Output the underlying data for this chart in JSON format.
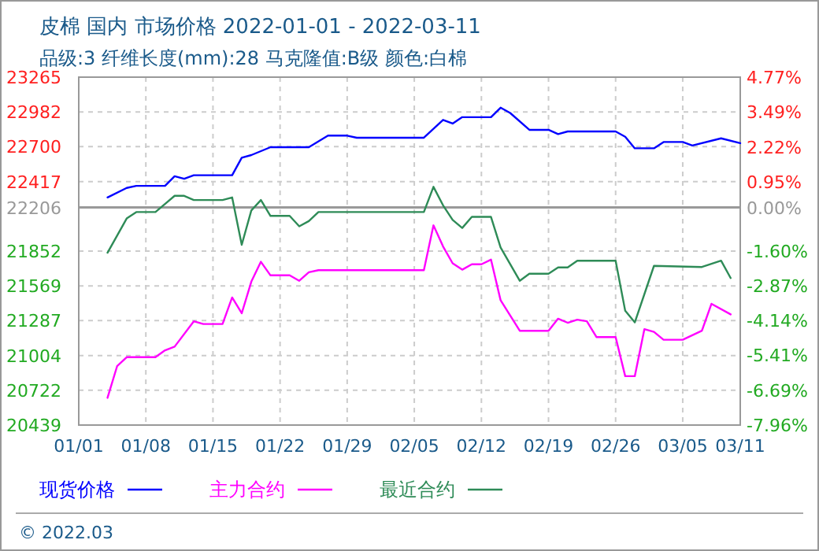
{
  "chart_data": {
    "type": "line",
    "title": "皮棉 国内 市场价格 2022-01-01 - 2022-03-11",
    "subtitle": "品级:3 纤维长度(mm):28 马克隆值:B级 颜色:白棉",
    "annotations": [
      "© 2022.03"
    ],
    "xlim": [
      "2022-01-01",
      "2022-03-11"
    ],
    "xticks": [
      {
        "value": "2022-01-01",
        "label": "01/01"
      },
      {
        "value": "2022-01-08",
        "label": "01/08"
      },
      {
        "value": "2022-01-15",
        "label": "01/15"
      },
      {
        "value": "2022-01-22",
        "label": "01/22"
      },
      {
        "value": "2022-01-29",
        "label": "01/29"
      },
      {
        "value": "2022-02-05",
        "label": "02/05"
      },
      {
        "value": "2022-02-12",
        "label": "02/12"
      },
      {
        "value": "2022-02-19",
        "label": "02/19"
      },
      {
        "value": "2022-02-26",
        "label": "02/26"
      },
      {
        "value": "2022-03-05",
        "label": "03/05"
      },
      {
        "value": "2022-03-11",
        "label": "03/11"
      }
    ],
    "ylim": [
      20439,
      23265
    ],
    "yticks": [
      20439,
      20722,
      21004,
      21287,
      21569,
      21852,
      22206,
      22417,
      22700,
      22982,
      23265
    ],
    "y2lim": [
      -7.96,
      4.77
    ],
    "y2ticks": [
      {
        "value": -7.96,
        "label": "-7.96%"
      },
      {
        "value": -6.69,
        "label": "-6.69%"
      },
      {
        "value": -5.41,
        "label": "-5.41%"
      },
      {
        "value": -4.14,
        "label": "-4.14%"
      },
      {
        "value": -2.87,
        "label": "-2.87%"
      },
      {
        "value": -1.6,
        "label": "-1.60%"
      },
      {
        "value": 0,
        "label": "0.00%"
      },
      {
        "value": 0.95,
        "label": "0.95%"
      },
      {
        "value": 2.22,
        "label": "2.22%"
      },
      {
        "value": 3.49,
        "label": "3.49%"
      },
      {
        "value": 4.77,
        "label": "4.77%"
      }
    ],
    "ref_lines": [
      {
        "axis": "y2",
        "value": 0,
        "color": "#999999",
        "line_style": "solid"
      }
    ],
    "grid": true,
    "legend": "bottom",
    "marker": "none",
    "line_style": "solid",
    "series": [
      {
        "name": "现货价格",
        "color": "#0000ff",
        "x": [
          "2022-01-04",
          "2022-01-06",
          "2022-01-07",
          "2022-01-10",
          "2022-01-11",
          "2022-01-12",
          "2022-01-13",
          "2022-01-17",
          "2022-01-18",
          "2022-01-19",
          "2022-01-21",
          "2022-01-25",
          "2022-01-27",
          "2022-01-29",
          "2022-01-30",
          "2022-02-06",
          "2022-02-08",
          "2022-02-09",
          "2022-02-10",
          "2022-02-13",
          "2022-02-14",
          "2022-02-15",
          "2022-02-17",
          "2022-02-19",
          "2022-02-20",
          "2022-02-21",
          "2022-02-26",
          "2022-02-27",
          "2022-02-28",
          "2022-03-02",
          "2022-03-03",
          "2022-03-05",
          "2022-03-06",
          "2022-03-09",
          "2022-03-11"
        ],
        "values": [
          22288,
          22365,
          22382,
          22382,
          22460,
          22440,
          22468,
          22468,
          22610,
          22632,
          22696,
          22696,
          22790,
          22790,
          22773,
          22773,
          22918,
          22888,
          22940,
          22940,
          23017,
          22974,
          22837,
          22837,
          22802,
          22824,
          22824,
          22781,
          22687,
          22687,
          22738,
          22738,
          22709,
          22768,
          22729
        ]
      },
      {
        "name": "主力合约",
        "color": "#ff00ff",
        "x": [
          "2022-01-04",
          "2022-01-05",
          "2022-01-06",
          "2022-01-09",
          "2022-01-10",
          "2022-01-11",
          "2022-01-13",
          "2022-01-14",
          "2022-01-16",
          "2022-01-17",
          "2022-01-18",
          "2022-01-19",
          "2022-01-20",
          "2022-01-21",
          "2022-01-23",
          "2022-01-24",
          "2022-01-25",
          "2022-01-26",
          "2022-02-06",
          "2022-02-07",
          "2022-02-08",
          "2022-02-09",
          "2022-02-10",
          "2022-02-11",
          "2022-02-12",
          "2022-02-13",
          "2022-02-14",
          "2022-02-16",
          "2022-02-19",
          "2022-02-20",
          "2022-02-21",
          "2022-02-22",
          "2022-02-23",
          "2022-02-24",
          "2022-02-26",
          "2022-02-27",
          "2022-02-28",
          "2022-03-01",
          "2022-03-02",
          "2022-03-03",
          "2022-03-05",
          "2022-03-07",
          "2022-03-08",
          "2022-03-10"
        ],
        "values": [
          20660,
          20917,
          20990,
          20990,
          21046,
          21076,
          21282,
          21260,
          21260,
          21475,
          21347,
          21604,
          21765,
          21655,
          21655,
          21611,
          21680,
          21697,
          21697,
          22061,
          21890,
          21753,
          21701,
          21745,
          21745,
          21783,
          21453,
          21205,
          21205,
          21303,
          21270,
          21295,
          21282,
          21154,
          21154,
          20836,
          20836,
          21218,
          21196,
          21132,
          21132,
          21205,
          21424,
          21338
        ]
      },
      {
        "name": "最近合约",
        "color": "#2e8b57",
        "x": [
          "2022-01-04",
          "2022-01-06",
          "2022-01-07",
          "2022-01-09",
          "2022-01-11",
          "2022-01-12",
          "2022-01-13",
          "2022-01-16",
          "2022-01-17",
          "2022-01-18",
          "2022-01-19",
          "2022-01-20",
          "2022-01-21",
          "2022-01-23",
          "2022-01-24",
          "2022-01-25",
          "2022-01-26",
          "2022-02-06",
          "2022-02-07",
          "2022-02-08",
          "2022-02-09",
          "2022-02-10",
          "2022-02-11",
          "2022-02-13",
          "2022-02-14",
          "2022-02-16",
          "2022-02-17",
          "2022-02-19",
          "2022-02-20",
          "2022-02-21",
          "2022-02-22",
          "2022-02-26",
          "2022-02-27",
          "2022-02-28",
          "2022-03-02",
          "2022-03-07",
          "2022-03-09",
          "2022-03-10"
        ],
        "values": [
          21839,
          22117,
          22169,
          22169,
          22301,
          22301,
          22267,
          22267,
          22288,
          21903,
          22182,
          22267,
          22138,
          22138,
          22053,
          22096,
          22169,
          22169,
          22374,
          22224,
          22105,
          22040,
          22130,
          22130,
          21881,
          21611,
          21668,
          21668,
          21719,
          21719,
          21774,
          21774,
          21367,
          21273,
          21732,
          21723,
          21774,
          21633
        ]
      }
    ]
  }
}
